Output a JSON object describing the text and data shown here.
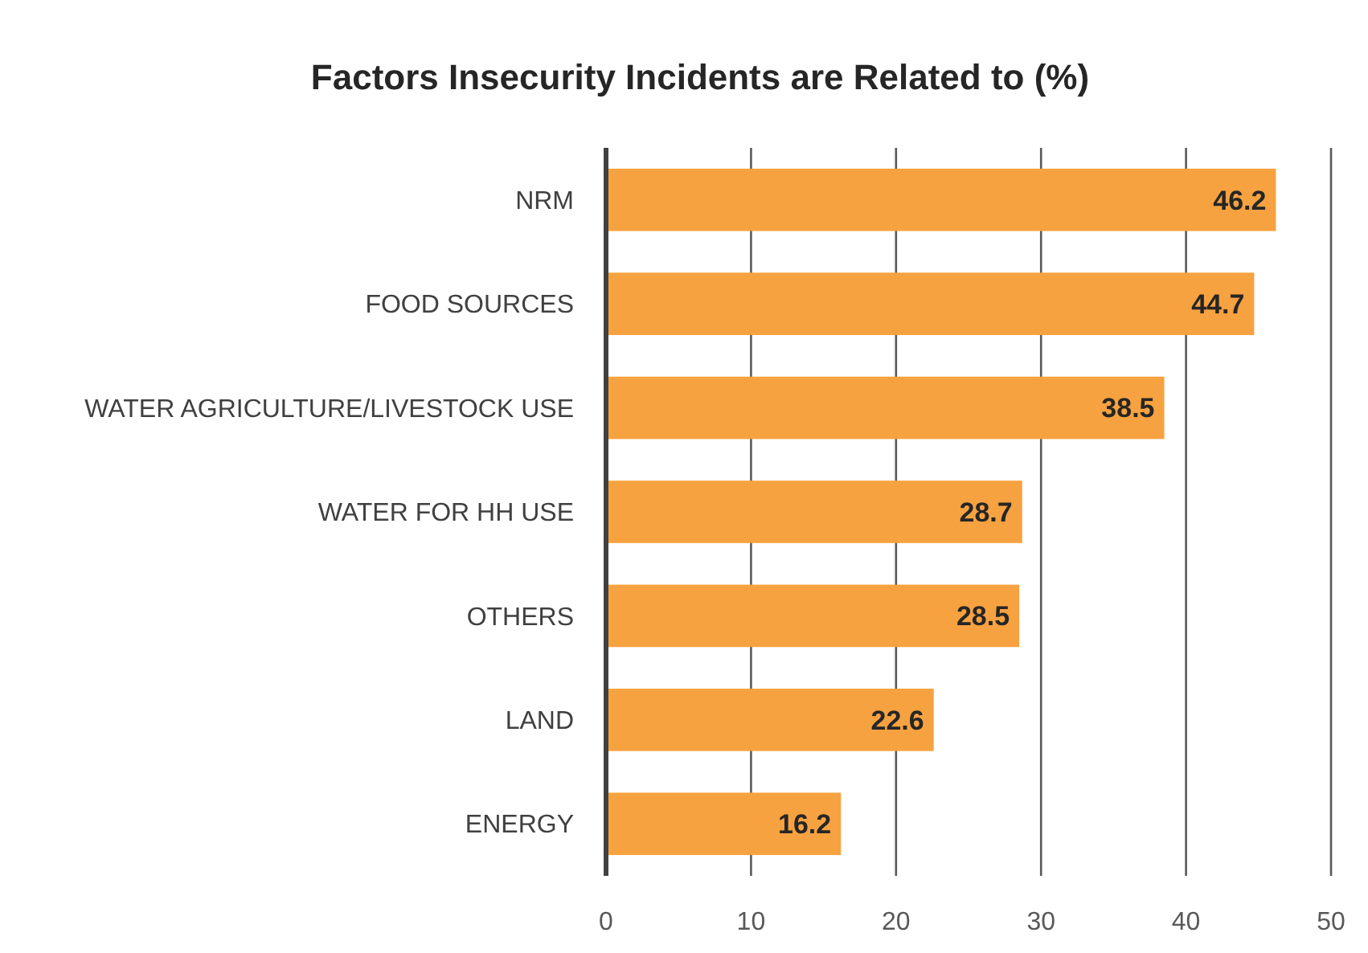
{
  "chart_data": {
    "type": "bar",
    "orientation": "horizontal",
    "title": "Factors Insecurity Incidents are Related to (%)",
    "categories": [
      "NRM",
      "FOOD SOURCES",
      "WATER AGRICULTURE/LIVESTOCK USE",
      "WATER FOR HH USE",
      "OTHERS",
      "LAND",
      "ENERGY"
    ],
    "values": [
      46.2,
      44.7,
      38.5,
      28.7,
      28.5,
      22.6,
      16.2
    ],
    "color": "#f7a240",
    "xlim": [
      0,
      50
    ],
    "xticks": [
      0,
      10,
      20,
      30,
      40,
      50
    ],
    "grid": "x",
    "data_labels": true
  }
}
